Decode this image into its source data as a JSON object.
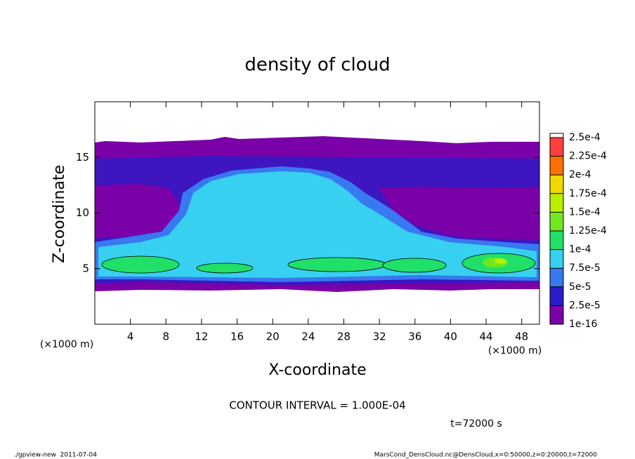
{
  "chart_data": {
    "type": "contour",
    "title": "density of cloud",
    "xlabel": "X-coordinate",
    "ylabel": "Z-coordinate",
    "x_unit": "(×1000 m)",
    "y_unit": "(×1000 m)",
    "annotation": "CONTOUR INTERVAL = 1.000E-04",
    "time_label": "t=72000 s",
    "footer_left": "./gpview-new  2011-07-04",
    "footer_right": "MarsCond_DensCloud.nc@DensCloud,x=0:50000,z=0:20000,t=72000",
    "xlim": [
      0,
      50
    ],
    "ylim": [
      0,
      20
    ],
    "xticks": [
      4,
      8,
      12,
      16,
      20,
      24,
      28,
      32,
      36,
      40,
      44,
      48
    ],
    "yticks": [
      5,
      10,
      15
    ],
    "colorbar": {
      "levels": [
        {
          "value": 1e-16,
          "label": "1e-16"
        },
        {
          "value": 2.5e-05,
          "label": "2.5e-5"
        },
        {
          "value": 5e-05,
          "label": "5e-5"
        },
        {
          "value": 7.5e-05,
          "label": "7.5e-5"
        },
        {
          "value": 0.0001,
          "label": "1e-4"
        },
        {
          "value": 0.000125,
          "label": "1.25e-4"
        },
        {
          "value": 0.00015,
          "label": "1.5e-4"
        },
        {
          "value": 0.000175,
          "label": "1.75e-4"
        },
        {
          "value": 0.0002,
          "label": "2e-4"
        },
        {
          "value": 0.000225,
          "label": "2.25e-4"
        },
        {
          "value": 0.00025,
          "label": "2.5e-4"
        }
      ],
      "colors": [
        "#7a00a8",
        "#2a1ec8",
        "#3878f0",
        "#38d0f0",
        "#20e068",
        "#70e820",
        "#b8f000",
        "#f0d800",
        "#ff7000",
        "#ff4040"
      ]
    }
  }
}
